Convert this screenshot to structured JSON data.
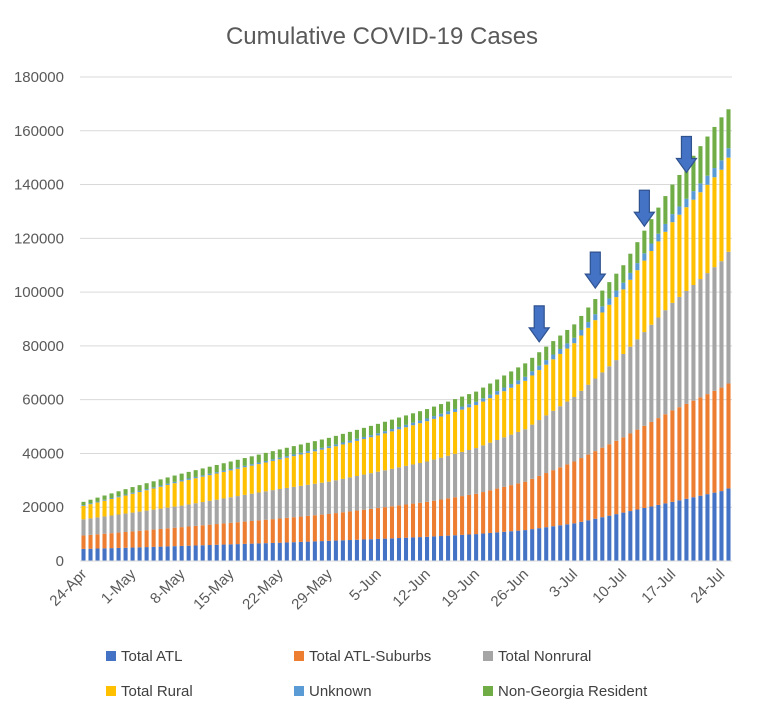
{
  "chart_data": {
    "type": "bar",
    "stacked": true,
    "title": "Cumulative COVID-19 Cases",
    "xlabel": "",
    "ylabel": "",
    "ylim": [
      0,
      180000
    ],
    "y_ticks": [
      0,
      20000,
      40000,
      60000,
      80000,
      100000,
      120000,
      140000,
      160000,
      180000
    ],
    "x_tick_labels": [
      "24-Apr",
      "1-May",
      "8-May",
      "15-May",
      "22-May",
      "29-May",
      "5-Jun",
      "12-Jun",
      "19-Jun",
      "26-Jun",
      "3-Jul",
      "10-Jul",
      "17-Jul",
      "24-Jul"
    ],
    "x_start": "24-Apr",
    "x_end": "25-Jul",
    "grid": true,
    "legend_position": "bottom",
    "totals_anchors": [
      {
        "date": "24-Apr",
        "total": 22000
      },
      {
        "date": "1-May",
        "total": 27500
      },
      {
        "date": "8-May",
        "total": 32500
      },
      {
        "date": "15-May",
        "total": 37000
      },
      {
        "date": "22-May",
        "total": 41500
      },
      {
        "date": "29-May",
        "total": 45800
      },
      {
        "date": "5-Jun",
        "total": 51000
      },
      {
        "date": "12-Jun",
        "total": 56500
      },
      {
        "date": "19-Jun",
        "total": 63000
      },
      {
        "date": "26-Jun",
        "total": 73500
      },
      {
        "date": "3-Jul",
        "total": 88000
      },
      {
        "date": "10-Jul",
        "total": 110000
      },
      {
        "date": "17-Jul",
        "total": 140000
      },
      {
        "date": "24-Jul",
        "total": 165000
      },
      {
        "date": "25-Jul",
        "total": 168000
      }
    ],
    "series": [
      {
        "name": "Total ATL",
        "color": "#4472C4",
        "values_at_anchors": [
          4500,
          5000,
          5600,
          6200,
          6800,
          7500,
          8200,
          9000,
          10000,
          11500,
          14000,
          18000,
          22000,
          26000,
          27000
        ]
      },
      {
        "name": "Total ATL-Suburbs",
        "color": "#ED7D31",
        "values_at_anchors": [
          5000,
          6000,
          7000,
          8000,
          9000,
          10000,
          11500,
          13000,
          15000,
          18000,
          23000,
          28000,
          34000,
          38500,
          39000
        ]
      },
      {
        "name": "Total Nonrural",
        "color": "#A5A5A5",
        "values_at_anchors": [
          6000,
          7000,
          8000,
          9500,
          11000,
          12000,
          13500,
          15000,
          17000,
          19500,
          24000,
          31000,
          40000,
          47000,
          49000
        ]
      },
      {
        "name": "Total Rural",
        "color": "#FFC000",
        "values_at_anchors": [
          5000,
          7000,
          9000,
          10000,
          11000,
          12500,
          13500,
          15000,
          16000,
          18000,
          20000,
          24000,
          30000,
          34000,
          35000
        ]
      },
      {
        "name": "Unknown",
        "color": "#5B9BD5",
        "values_at_anchors": [
          300,
          400,
          500,
          500,
          600,
          700,
          800,
          1000,
          1200,
          1500,
          2000,
          2500,
          3000,
          3500,
          3500
        ]
      },
      {
        "name": "Non-Georgia Resident",
        "color": "#70AD47",
        "values_at_anchors": [
          1200,
          2100,
          2400,
          2800,
          3100,
          3100,
          3500,
          3500,
          3800,
          5000,
          5000,
          6500,
          11000,
          16000,
          14500
        ]
      }
    ],
    "annotations": [
      {
        "type": "arrow",
        "date": "28-Jun",
        "total": 80000
      },
      {
        "type": "arrow",
        "date": "6-Jul",
        "total": 100000
      },
      {
        "type": "arrow",
        "date": "13-Jul",
        "total": 123000
      },
      {
        "type": "arrow",
        "date": "19-Jul",
        "total": 143000
      }
    ],
    "arrow_color": "#4472C4",
    "arrow_outline": "#2F528F"
  }
}
